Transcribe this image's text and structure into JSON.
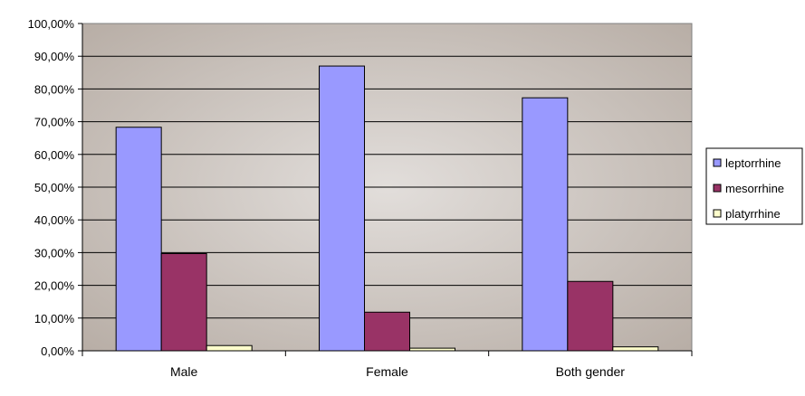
{
  "chart_data": {
    "type": "bar",
    "categories": [
      "Male",
      "Female",
      "Both gender"
    ],
    "series": [
      {
        "name": "leptorrhine",
        "values": [
          68.3,
          87.0,
          77.3
        ],
        "color": "#9999ff"
      },
      {
        "name": "mesorrhine",
        "values": [
          29.7,
          11.8,
          21.2
        ],
        "color": "#993366"
      },
      {
        "name": "platyrrhine",
        "values": [
          1.6,
          0.8,
          1.2
        ],
        "color": "#ffffcc"
      }
    ],
    "y_ticks": [
      "0,00%",
      "10,00%",
      "20,00%",
      "30,00%",
      "40,00%",
      "50,00%",
      "60,00%",
      "70,00%",
      "80,00%",
      "90,00%",
      "100,00%"
    ],
    "ylim": [
      0,
      100
    ],
    "grid": true,
    "legend_position": "right",
    "plot_background": "#c0b8b0"
  }
}
